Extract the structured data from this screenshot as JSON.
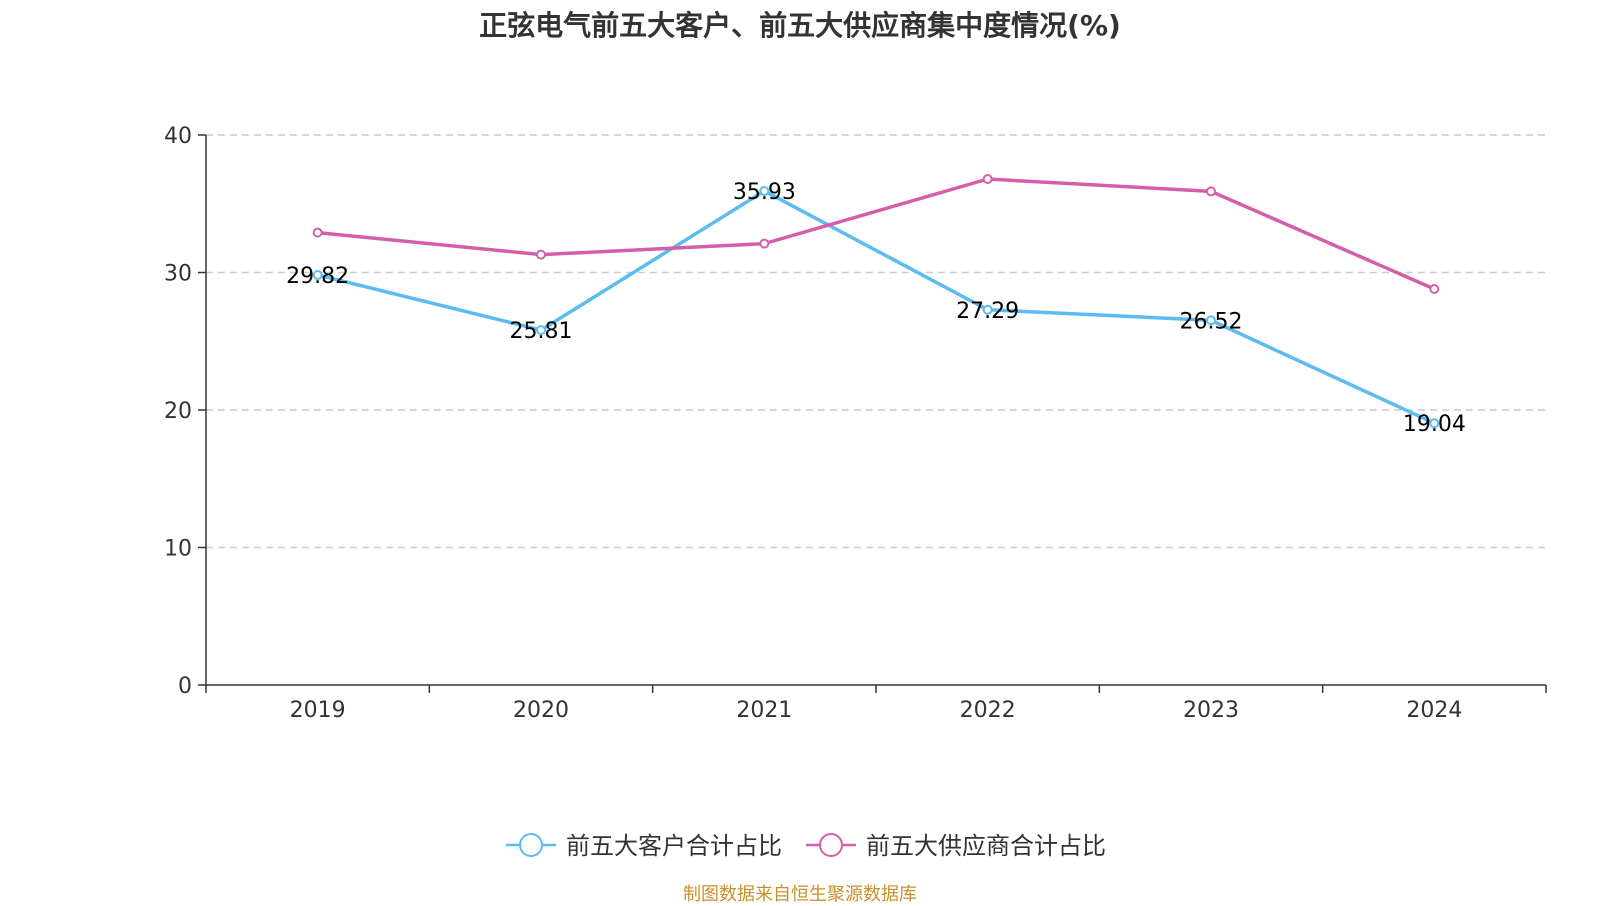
{
  "chart_data": {
    "type": "line",
    "title": "正弦电气前五大客户、前五大供应商集中度情况(%)",
    "categories": [
      "2019",
      "2020",
      "2021",
      "2022",
      "2023",
      "2024"
    ],
    "ylim": [
      0,
      40
    ],
    "yticks": [
      "0",
      "10",
      "20",
      "30",
      "40"
    ],
    "grid": true,
    "legend_position": "bottom",
    "series": [
      {
        "name": "前五大客户合计占比",
        "color": "#5bbcf0",
        "values": [
          29.82,
          25.81,
          35.93,
          27.29,
          26.52,
          19.04
        ],
        "labels": [
          "29.82",
          "25.81",
          "35.93",
          "27.29",
          "26.52",
          "19.04"
        ]
      },
      {
        "name": "前五大供应商合计占比",
        "color": "#d45fa8",
        "values": [
          32.9,
          31.3,
          32.1,
          36.8,
          35.9,
          28.8
        ],
        "labels": []
      }
    ]
  },
  "footer": {
    "source": "制图数据来自恒生聚源数据库"
  }
}
